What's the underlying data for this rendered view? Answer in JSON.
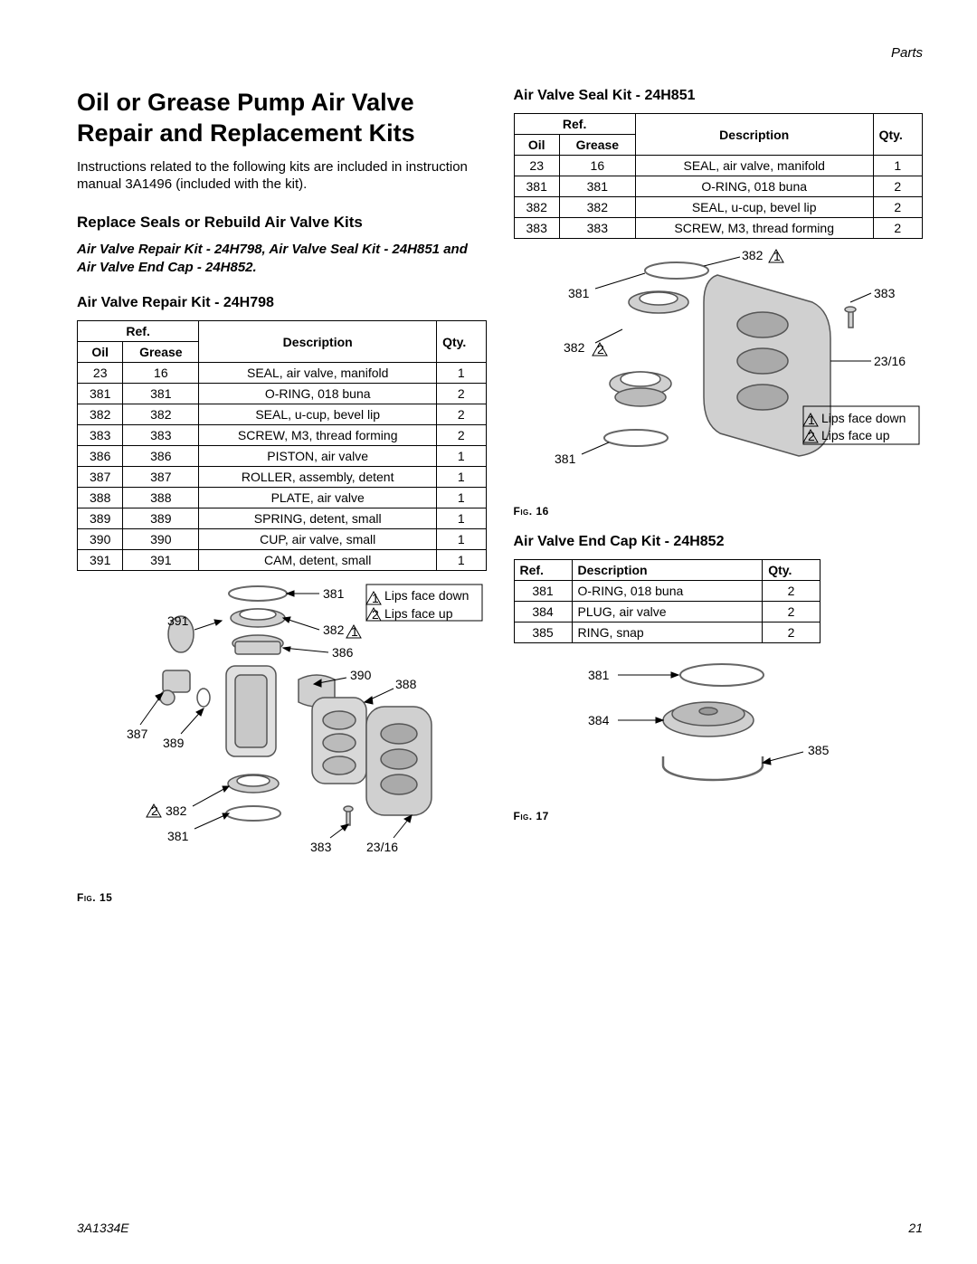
{
  "header": {
    "section": "Parts"
  },
  "title": "Oil or Grease Pump Air Valve Repair and Replacement Kits",
  "intro": "Instructions related to the following kits are included in instruction manual 3A1496 (included with the kit).",
  "sectionA": {
    "heading": "Replace Seals or Rebuild Air Valve Kits",
    "kits_note": "Air Valve Repair Kit - 24H798, Air Valve Seal Kit - 24H851 and Air Valve End Cap - 24H852."
  },
  "table1": {
    "title": "Air Valve Repair Kit - 24H798",
    "head": {
      "ref": "Ref.",
      "oil": "Oil",
      "grease": "Grease",
      "desc": "Description",
      "qty": "Qty."
    },
    "rows": [
      {
        "oil": "23",
        "grease": "16",
        "desc": "SEAL, air valve, manifold",
        "qty": "1"
      },
      {
        "oil": "381",
        "grease": "381",
        "desc": "O-RING, 018 buna",
        "qty": "2"
      },
      {
        "oil": "382",
        "grease": "382",
        "desc": "SEAL, u-cup, bevel lip",
        "qty": "2"
      },
      {
        "oil": "383",
        "grease": "383",
        "desc": "SCREW, M3, thread forming",
        "qty": "2"
      },
      {
        "oil": "386",
        "grease": "386",
        "desc": "PISTON, air valve",
        "qty": "1"
      },
      {
        "oil": "387",
        "grease": "387",
        "desc": "ROLLER, assembly, detent",
        "qty": "1"
      },
      {
        "oil": "388",
        "grease": "388",
        "desc": "PLATE, air valve",
        "qty": "1"
      },
      {
        "oil": "389",
        "grease": "389",
        "desc": "SPRING, detent, small",
        "qty": "1"
      },
      {
        "oil": "390",
        "grease": "390",
        "desc": "CUP, air valve, small",
        "qty": "1"
      },
      {
        "oil": "391",
        "grease": "391",
        "desc": "CAM, detent, small",
        "qty": "1"
      }
    ]
  },
  "table2": {
    "title": "Air Valve Seal Kit - 24H851",
    "head": {
      "ref": "Ref.",
      "oil": "Oil",
      "grease": "Grease",
      "desc": "Description",
      "qty": "Qty."
    },
    "rows": [
      {
        "oil": "23",
        "grease": "16",
        "desc": "SEAL, air valve, manifold",
        "qty": "1"
      },
      {
        "oil": "381",
        "grease": "381",
        "desc": "O-RING, 018 buna",
        "qty": "2"
      },
      {
        "oil": "382",
        "grease": "382",
        "desc": "SEAL, u-cup, bevel lip",
        "qty": "2"
      },
      {
        "oil": "383",
        "grease": "383",
        "desc": "SCREW, M3, thread forming",
        "qty": "2"
      }
    ]
  },
  "table3": {
    "title": "Air Valve End Cap Kit - 24H852",
    "head": {
      "ref": "Ref.",
      "desc": "Description",
      "qty": "Qty."
    },
    "rows": [
      {
        "ref": "381",
        "desc": "O-RING, 018 buna",
        "qty": "2"
      },
      {
        "ref": "384",
        "desc": "PLUG, air valve",
        "qty": "2"
      },
      {
        "ref": "385",
        "desc": "RING, snap",
        "qty": "2"
      }
    ]
  },
  "legend": {
    "down": "Lips face down",
    "up": "Lips face up"
  },
  "fig15": {
    "caption": "Fig. 15",
    "labels": {
      "381a": "381",
      "391": "391",
      "382a": "382",
      "386": "386",
      "390": "390",
      "388": "388",
      "387": "387",
      "389": "389",
      "382b": "382",
      "383": "383",
      "381b": "381",
      "23_16": "23/16"
    }
  },
  "fig16": {
    "caption": "Fig. 16",
    "labels": {
      "382a": "382",
      "381a": "381",
      "383": "383",
      "382b": "382",
      "23_16": "23/16",
      "381b": "381"
    }
  },
  "fig17": {
    "caption": "Fig. 17",
    "labels": {
      "381": "381",
      "384": "384",
      "385": "385"
    }
  },
  "footer": {
    "doc": "3A1334E",
    "page": "21"
  },
  "colors": {
    "part_fill": "#d0d0d0",
    "part_stroke": "#555555",
    "line": "#000000"
  }
}
